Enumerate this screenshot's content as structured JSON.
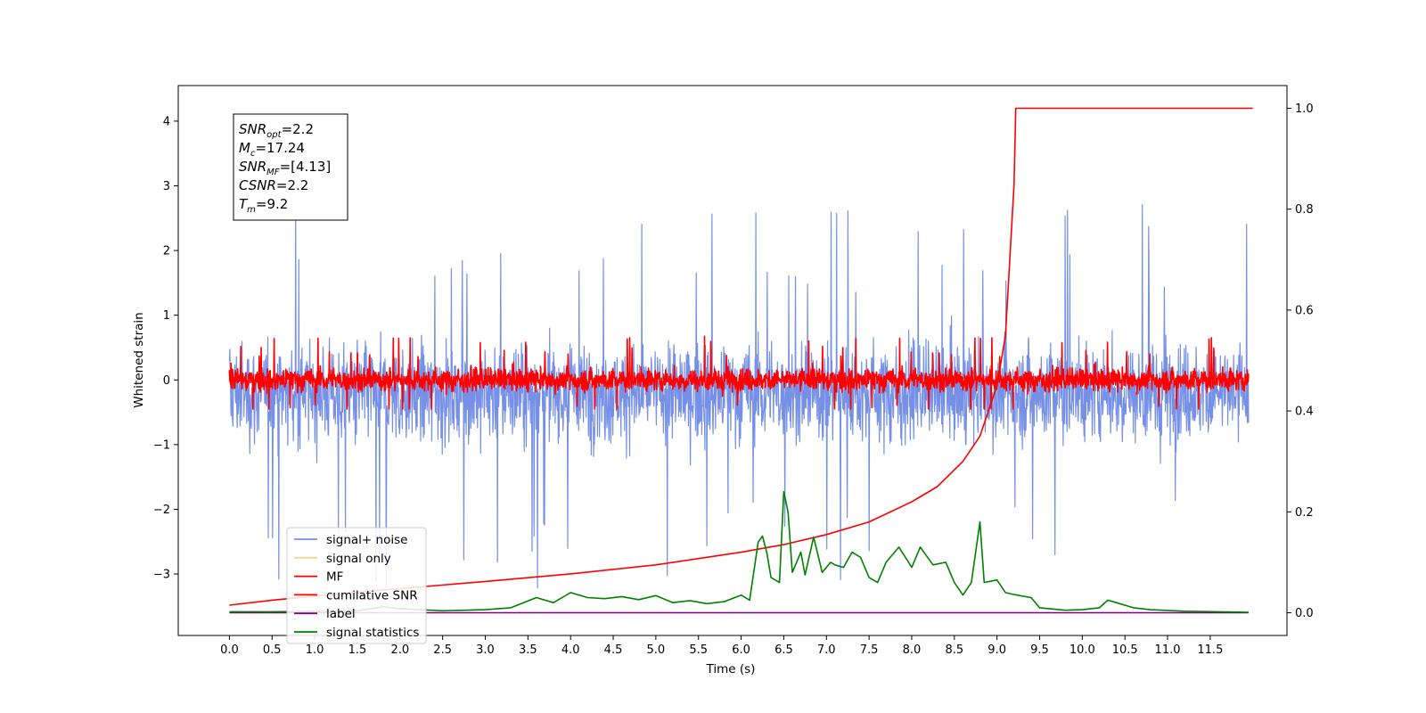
{
  "chart_data": {
    "type": "line",
    "title": "",
    "xlabel": "Time (s)",
    "ylabel": "Whitened strain",
    "xlim": [
      -0.6,
      12.4
    ],
    "ylim": [
      -3.95,
      4.55
    ],
    "y2lim": [
      -0.045,
      1.045
    ],
    "x_ticks": [
      0.0,
      0.5,
      1.0,
      1.5,
      2.0,
      2.5,
      3.0,
      3.5,
      4.0,
      4.5,
      5.0,
      5.5,
      6.0,
      6.5,
      7.0,
      7.5,
      8.0,
      8.5,
      9.0,
      9.5,
      10.0,
      10.5,
      11.0,
      11.5
    ],
    "x_tick_labels": [
      "0.0",
      "0.5",
      "1.0",
      "1.5",
      "2.0",
      "2.5",
      "3.0",
      "3.5",
      "4.0",
      "4.5",
      "5.0",
      "5.5",
      "6.0",
      "6.5",
      "7.0",
      "7.5",
      "8.0",
      "8.5",
      "9.0",
      "9.5",
      "10.0",
      "10.5",
      "11.0",
      "11.5"
    ],
    "y_ticks": [
      -3,
      -2,
      -1,
      0,
      1,
      2,
      3,
      4
    ],
    "y_tick_labels": [
      "−3",
      "−2",
      "−1",
      "0",
      "1",
      "2",
      "3",
      "4"
    ],
    "y2_ticks": [
      0.0,
      0.2,
      0.4,
      0.6,
      0.8,
      1.0
    ],
    "y2_tick_labels": [
      "0.0",
      "0.2",
      "0.4",
      "0.6",
      "0.8",
      "1.0"
    ],
    "grid": false,
    "legend_placement": "lower-left",
    "series": [
      {
        "name": "signal+ noise",
        "axis": "left",
        "color": "#7590e6",
        "kind": "noise",
        "x_range": [
          0.0,
          11.95
        ],
        "center": -0.2,
        "spread": 0.95,
        "spike_max": 4.15,
        "spike_min": -3.6
      },
      {
        "name": "signal only",
        "axis": "left",
        "color": "#f9d38f",
        "kind": "flat",
        "x_range": [
          0.0,
          11.95
        ],
        "value": 0.0
      },
      {
        "name": "MF",
        "axis": "left",
        "color": "#ff0000",
        "kind": "noise",
        "x_range": [
          0.0,
          11.95
        ],
        "center": 0.0,
        "spread": 0.22,
        "spike_max": 0.95,
        "spike_min": -0.45
      },
      {
        "name": "cumilative SNR",
        "axis": "right",
        "color": "#ff0000",
        "kind": "curve",
        "points": [
          [
            0.0,
            0.015
          ],
          [
            0.5,
            0.025
          ],
          [
            1.0,
            0.033
          ],
          [
            2.0,
            0.048
          ],
          [
            3.0,
            0.062
          ],
          [
            4.0,
            0.077
          ],
          [
            5.0,
            0.095
          ],
          [
            6.0,
            0.12
          ],
          [
            6.5,
            0.135
          ],
          [
            7.0,
            0.155
          ],
          [
            7.5,
            0.18
          ],
          [
            8.0,
            0.22
          ],
          [
            8.3,
            0.25
          ],
          [
            8.6,
            0.3
          ],
          [
            8.8,
            0.35
          ],
          [
            9.0,
            0.45
          ],
          [
            9.1,
            0.55
          ],
          [
            9.15,
            0.7
          ],
          [
            9.2,
            0.85
          ],
          [
            9.22,
            1.0
          ],
          [
            12.0,
            1.0
          ]
        ]
      },
      {
        "name": "label",
        "axis": "right",
        "color": "#800080",
        "kind": "curve",
        "points": [
          [
            0.0,
            0.0
          ],
          [
            11.95,
            0.0
          ]
        ]
      },
      {
        "name": "signal statistics",
        "axis": "right",
        "color": "#008000",
        "kind": "curve",
        "points": [
          [
            0.0,
            0.002
          ],
          [
            0.5,
            0.002
          ],
          [
            1.0,
            0.003
          ],
          [
            1.5,
            0.004
          ],
          [
            1.8,
            0.012
          ],
          [
            2.0,
            0.008
          ],
          [
            2.5,
            0.004
          ],
          [
            3.0,
            0.006
          ],
          [
            3.3,
            0.01
          ],
          [
            3.6,
            0.03
          ],
          [
            3.8,
            0.02
          ],
          [
            4.0,
            0.04
          ],
          [
            4.2,
            0.03
          ],
          [
            4.4,
            0.028
          ],
          [
            4.6,
            0.032
          ],
          [
            4.8,
            0.026
          ],
          [
            5.0,
            0.034
          ],
          [
            5.2,
            0.02
          ],
          [
            5.4,
            0.024
          ],
          [
            5.6,
            0.018
          ],
          [
            5.8,
            0.022
          ],
          [
            6.0,
            0.035
          ],
          [
            6.1,
            0.025
          ],
          [
            6.2,
            0.14
          ],
          [
            6.25,
            0.152
          ],
          [
            6.3,
            0.12
          ],
          [
            6.35,
            0.07
          ],
          [
            6.45,
            0.06
          ],
          [
            6.5,
            0.24
          ],
          [
            6.55,
            0.2
          ],
          [
            6.6,
            0.08
          ],
          [
            6.7,
            0.12
          ],
          [
            6.75,
            0.075
          ],
          [
            6.85,
            0.15
          ],
          [
            6.95,
            0.08
          ],
          [
            7.05,
            0.1
          ],
          [
            7.1,
            0.095
          ],
          [
            7.2,
            0.09
          ],
          [
            7.3,
            0.12
          ],
          [
            7.4,
            0.11
          ],
          [
            7.5,
            0.07
          ],
          [
            7.6,
            0.06
          ],
          [
            7.7,
            0.1
          ],
          [
            7.85,
            0.13
          ],
          [
            8.0,
            0.09
          ],
          [
            8.1,
            0.13
          ],
          [
            8.25,
            0.095
          ],
          [
            8.4,
            0.1
          ],
          [
            8.5,
            0.06
          ],
          [
            8.6,
            0.035
          ],
          [
            8.7,
            0.06
          ],
          [
            8.8,
            0.18
          ],
          [
            8.85,
            0.06
          ],
          [
            9.0,
            0.065
          ],
          [
            9.1,
            0.04
          ],
          [
            9.2,
            0.036
          ],
          [
            9.4,
            0.03
          ],
          [
            9.5,
            0.01
          ],
          [
            9.8,
            0.005
          ],
          [
            10.0,
            0.006
          ],
          [
            10.2,
            0.01
          ],
          [
            10.3,
            0.025
          ],
          [
            10.4,
            0.02
          ],
          [
            10.6,
            0.01
          ],
          [
            10.8,
            0.006
          ],
          [
            11.2,
            0.003
          ],
          [
            11.95,
            0.001
          ]
        ]
      }
    ]
  },
  "info_box": {
    "lines": [
      {
        "name": "SNR",
        "sub": "opt",
        "value": "=2.2"
      },
      {
        "name": "M",
        "sub": "c",
        "value": "=17.24"
      },
      {
        "name": "SNR",
        "sub": "MF",
        "value": "=[4.13]"
      },
      {
        "name": "CSNR",
        "sub": "",
        "value": "=2.2"
      },
      {
        "name": "T",
        "sub": "m",
        "value": "=9.2"
      }
    ]
  }
}
